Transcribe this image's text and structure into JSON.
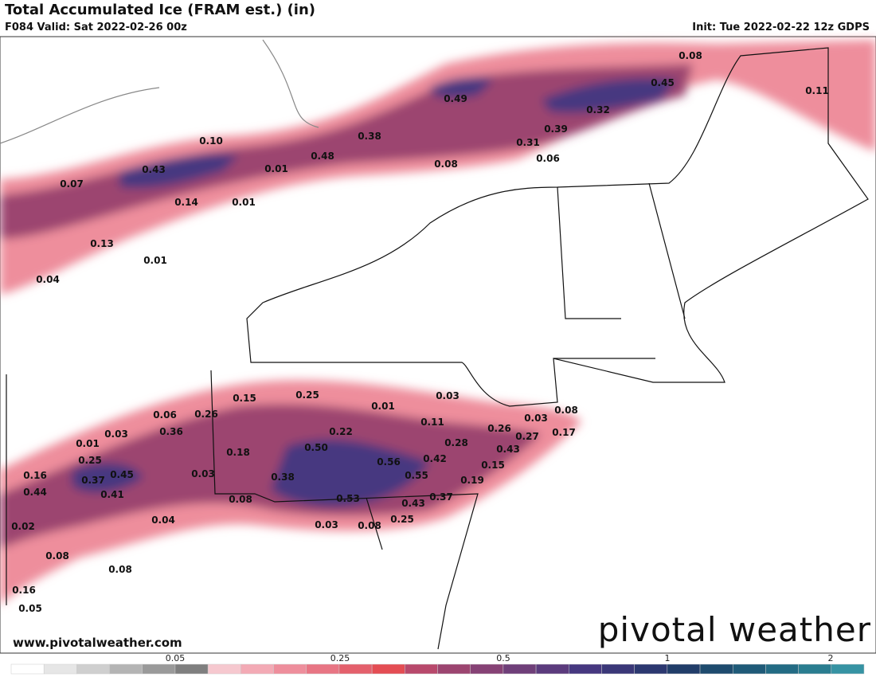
{
  "header": {
    "title": "Total Accumulated Ice (FRAM est.) (in)",
    "valid": "F084 Valid: Sat 2022-02-26 00z",
    "init": "Init: Tue 2022-02-22 12z GDPS"
  },
  "map": {
    "labels": [
      "0.08",
      "0.45",
      "0.11",
      "0.49",
      "0.32",
      "0.39",
      "0.38",
      "0.31",
      "0.10",
      "0.48",
      "0.06",
      "0.08",
      "0.01",
      "0.43",
      "0.07",
      "0.14",
      "0.01",
      "0.13",
      "0.01",
      "0.04",
      "0.15",
      "0.25",
      "0.03",
      "0.01",
      "0.08",
      "0.06",
      "0.26",
      "0.11",
      "0.03",
      "0.26",
      "0.22",
      "0.36",
      "0.03",
      "0.27",
      "0.17",
      "0.01",
      "0.28",
      "0.50",
      "0.43",
      "0.18",
      "0.25",
      "0.42",
      "0.56",
      "0.15",
      "0.16",
      "0.45",
      "0.37",
      "0.03",
      "0.38",
      "0.55",
      "0.19",
      "0.44",
      "0.41",
      "0.08",
      "0.53",
      "0.37",
      "0.43",
      "0.04",
      "0.25",
      "0.03",
      "0.08",
      "0.02",
      "0.08",
      "0.08",
      "0.16",
      "0.05"
    ]
  },
  "branding": {
    "logo": "pivotal weather",
    "url": "www.pivotalweather.com"
  },
  "colorbar": {
    "colors": [
      "#ffffff",
      "#e6e6e6",
      "#cfcfcf",
      "#b4b4b4",
      "#9a9a9a",
      "#7f7f7f",
      "#f6c8cf",
      "#f3aab5",
      "#ee8e9c",
      "#e87584",
      "#e4606c",
      "#e44d53",
      "#b8496c",
      "#9c4570",
      "#864275",
      "#6f3f79",
      "#5b3b7d",
      "#463880",
      "#3a3778",
      "#2c3870",
      "#213d69",
      "#1e4b6e",
      "#1f5a78",
      "#236b84",
      "#2a7d90",
      "#3693a3"
    ],
    "ticks": [
      "0.05",
      "0.25",
      "0.5",
      "1",
      "2"
    ]
  }
}
